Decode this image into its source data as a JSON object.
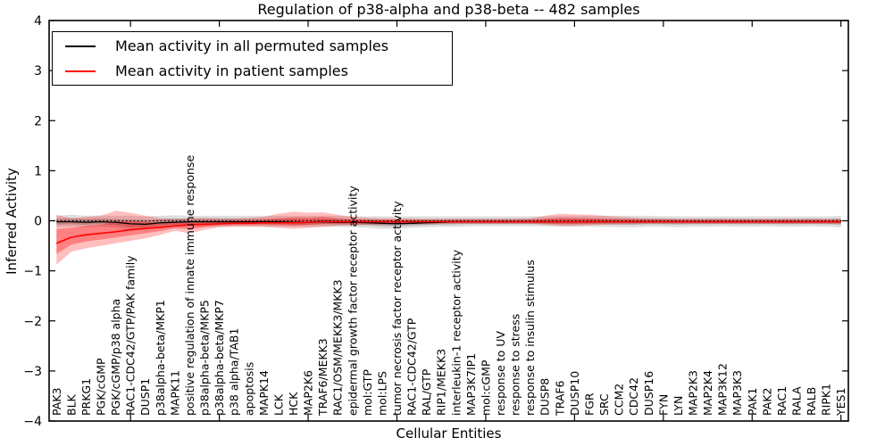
{
  "chart_data": {
    "type": "line",
    "title": "Regulation of p38-alpha and p38-beta -- 482 samples",
    "xlabel": "Cellular Entities",
    "ylabel": "Inferred Activity",
    "ylim": [
      -4,
      4
    ],
    "xlim": [
      -0.5,
      53.5
    ],
    "grid": false,
    "ytick_values": [
      4,
      3,
      2,
      1,
      0,
      -1,
      -2,
      -3,
      -4
    ],
    "ytick_labels": [
      "4",
      "3",
      "2",
      "1",
      "0",
      "−1",
      "−2",
      "−3",
      "−4"
    ],
    "x_major_ticks": [
      5,
      11,
      17,
      23,
      29,
      35,
      41,
      47,
      53
    ],
    "zero_line": {
      "y": 0,
      "style": "dotted",
      "color": "#000000"
    },
    "legend": {
      "position": "upper-left",
      "entries": [
        {
          "label": "Mean activity in all permuted samples",
          "color": "#000000"
        },
        {
          "label": "Mean activity in patient samples",
          "color": "#ff0000"
        }
      ]
    },
    "categories": [
      "PAK3",
      "BLK",
      "PRKG1",
      "PGK/cGMP",
      "PGK/cGMP/p38 alpha",
      "RAC1-CDC42/GTP/PAK family",
      "DUSP1",
      "p38alpha-beta/MKP1",
      "MAPK11",
      "positive regulation of innate immune response",
      "p38alpha-beta/MKP5",
      "p38alpha-beta/MKP7",
      "p38 alpha/TAB1",
      "apoptosis",
      "MAPK14",
      "LCK",
      "HCK",
      "MAP2K6",
      "TRAF6/MEKK3",
      "RAC1/OSM/MEKK3/MKK3",
      "epidermal growth factor receptor activity",
      "mol:GTP",
      "mol:LPS",
      "tumor necrosis factor receptor activity",
      "RAC1-CDC42/GTP",
      "RAL/GTP",
      "RIP1/MEKK3",
      "interleukin-1 receptor activity",
      "MAP3K7IP1",
      "mol:cGMP",
      "response to UV",
      "response to stress",
      "response to insulin stimulus",
      "DUSP8",
      "TRAF6",
      "DUSP10",
      "FGR",
      "SRC",
      "CCM2",
      "CDC42",
      "DUSP16",
      "FYN",
      "LYN",
      "MAP2K3",
      "MAP2K4",
      "MAP3K12",
      "MAP3K3",
      "PAK1",
      "PAK2",
      "RAC1",
      "RALA",
      "RALB",
      "RIPK1",
      "YES1"
    ],
    "series": [
      {
        "name": "Mean activity in all permuted samples",
        "color": "#000000",
        "line_width": 1.3,
        "band_color": "#000000",
        "band_opacity": 0.13,
        "values": [
          -0.02,
          -0.02,
          -0.03,
          -0.02,
          -0.03,
          -0.06,
          -0.07,
          -0.04,
          -0.03,
          -0.02,
          -0.02,
          -0.02,
          -0.02,
          -0.02,
          -0.02,
          -0.02,
          -0.03,
          -0.03,
          -0.02,
          -0.03,
          -0.03,
          -0.04,
          -0.05,
          -0.06,
          -0.05,
          -0.04,
          -0.03,
          -0.02,
          -0.02,
          -0.02,
          -0.02,
          -0.02,
          -0.02,
          -0.02,
          -0.02,
          -0.02,
          -0.02,
          -0.02,
          -0.02,
          -0.02,
          -0.02,
          -0.02,
          -0.02,
          -0.02,
          -0.02,
          -0.02,
          -0.02,
          -0.02,
          -0.02,
          -0.02,
          -0.02,
          -0.02,
          -0.02,
          -0.02
        ],
        "band_upper": [
          0.1,
          0.12,
          0.1,
          0.11,
          0.1,
          0.1,
          0.09,
          0.1,
          0.11,
          0.1,
          0.1,
          0.1,
          0.1,
          0.1,
          0.1,
          0.1,
          0.1,
          0.1,
          0.1,
          0.1,
          0.09,
          0.09,
          0.09,
          0.09,
          0.09,
          0.09,
          0.09,
          0.09,
          0.09,
          0.09,
          0.09,
          0.09,
          0.09,
          0.09,
          0.1,
          0.1,
          0.1,
          0.1,
          0.1,
          0.1,
          0.1,
          0.09,
          0.09,
          0.09,
          0.09,
          0.09,
          0.09,
          0.09,
          0.09,
          0.09,
          0.09,
          0.09,
          0.09,
          0.1
        ],
        "band_lower": [
          -0.13,
          -0.12,
          -0.13,
          -0.12,
          -0.14,
          -0.2,
          -0.18,
          -0.14,
          -0.12,
          -0.12,
          -0.12,
          -0.12,
          -0.11,
          -0.11,
          -0.12,
          -0.12,
          -0.12,
          -0.12,
          -0.12,
          -0.12,
          -0.13,
          -0.14,
          -0.16,
          -0.16,
          -0.14,
          -0.13,
          -0.12,
          -0.12,
          -0.11,
          -0.11,
          -0.11,
          -0.11,
          -0.11,
          -0.11,
          -0.12,
          -0.12,
          -0.12,
          -0.12,
          -0.13,
          -0.13,
          -0.12,
          -0.12,
          -0.13,
          -0.12,
          -0.12,
          -0.11,
          -0.12,
          -0.12,
          -0.11,
          -0.12,
          -0.12,
          -0.11,
          -0.12,
          -0.13
        ]
      },
      {
        "name": "Mean activity in patient samples",
        "color": "#ff0000",
        "line_width": 1.6,
        "band_color": "#ff0000",
        "band_opacity": 0.25,
        "values": [
          -0.45,
          -0.33,
          -0.28,
          -0.25,
          -0.22,
          -0.18,
          -0.15,
          -0.13,
          -0.1,
          -0.08,
          -0.07,
          -0.06,
          -0.05,
          -0.05,
          -0.04,
          -0.04,
          -0.04,
          -0.03,
          -0.01,
          -0.02,
          -0.02,
          -0.02,
          -0.02,
          -0.02,
          -0.02,
          -0.02,
          -0.02,
          -0.02,
          -0.02,
          -0.02,
          -0.02,
          -0.02,
          -0.02,
          -0.02,
          -0.02,
          -0.02,
          -0.02,
          -0.02,
          -0.02,
          -0.02,
          -0.02,
          -0.02,
          -0.02,
          -0.02,
          -0.02,
          -0.02,
          -0.02,
          -0.02,
          -0.02,
          -0.02,
          -0.02,
          -0.02,
          -0.02,
          -0.02
        ],
        "band_upper": [
          0.12,
          0.05,
          0.08,
          0.1,
          0.2,
          0.16,
          0.1,
          0.05,
          0.04,
          0.05,
          0.06,
          0.05,
          0.05,
          0.06,
          0.08,
          0.14,
          0.18,
          0.16,
          0.17,
          0.12,
          0.08,
          0.06,
          0.05,
          0.05,
          0.05,
          0.04,
          0.04,
          0.04,
          0.04,
          0.04,
          0.04,
          0.04,
          0.05,
          0.1,
          0.14,
          0.13,
          0.12,
          0.1,
          0.08,
          0.06,
          0.05,
          0.05,
          0.04,
          0.04,
          0.04,
          0.04,
          0.04,
          0.04,
          0.04,
          0.04,
          0.04,
          0.04,
          0.04,
          0.04
        ],
        "band_lower": [
          -0.88,
          -0.62,
          -0.55,
          -0.5,
          -0.45,
          -0.4,
          -0.35,
          -0.28,
          -0.2,
          -0.25,
          -0.18,
          -0.13,
          -0.12,
          -0.12,
          -0.12,
          -0.14,
          -0.16,
          -0.14,
          -0.12,
          -0.1,
          -0.09,
          -0.08,
          -0.08,
          -0.07,
          -0.07,
          -0.07,
          -0.06,
          -0.06,
          -0.06,
          -0.06,
          -0.06,
          -0.06,
          -0.06,
          -0.08,
          -0.1,
          -0.1,
          -0.09,
          -0.08,
          -0.07,
          -0.07,
          -0.06,
          -0.06,
          -0.06,
          -0.06,
          -0.06,
          -0.06,
          -0.06,
          -0.06,
          -0.06,
          -0.06,
          -0.06,
          -0.06,
          -0.06,
          -0.07
        ]
      }
    ]
  }
}
